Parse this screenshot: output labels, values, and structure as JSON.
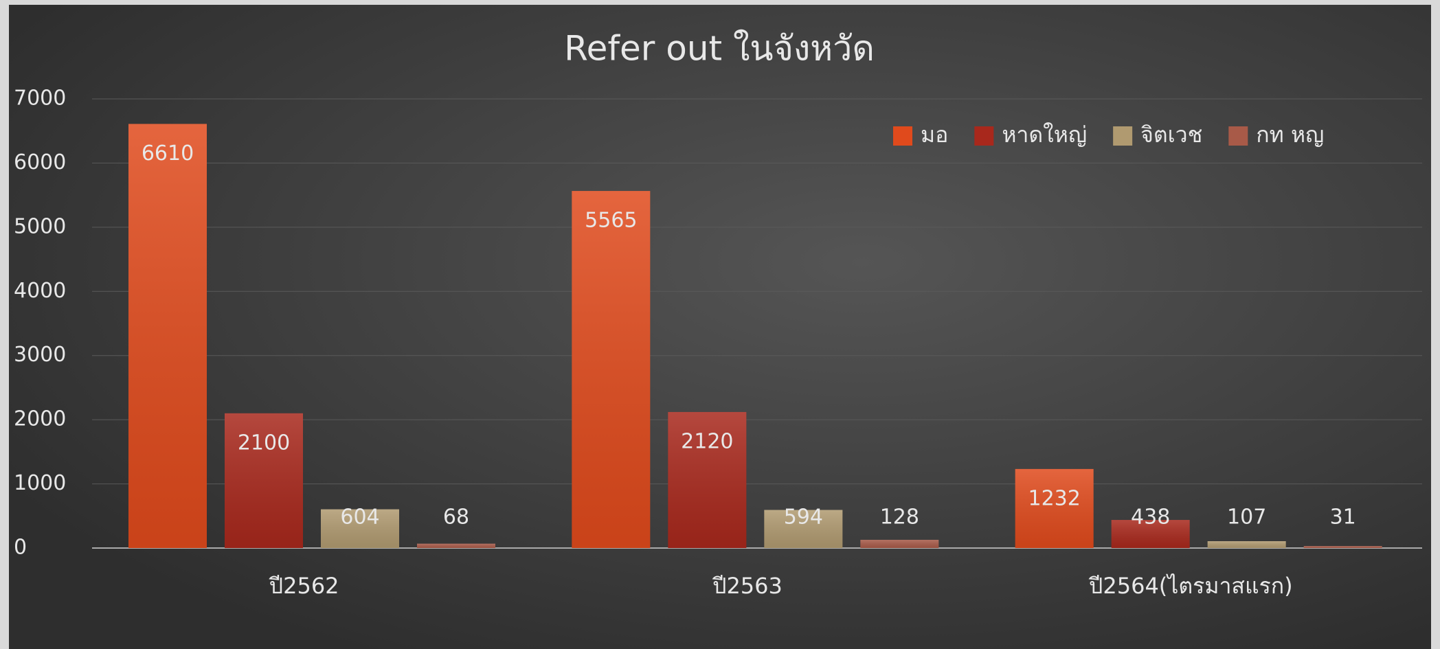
{
  "chart_data": {
    "type": "bar",
    "title": "Refer out ในจังหวัด",
    "categories": [
      "ปี2562",
      "ปี2563",
      "ปี2564(ไตรมาสแรก)"
    ],
    "series": [
      {
        "name": "มอ",
        "color": "#e04a1c",
        "values": [
          6610,
          5565,
          1232
        ]
      },
      {
        "name": "หาดใหญ่",
        "color": "#a8281c",
        "values": [
          2100,
          2120,
          438
        ]
      },
      {
        "name": "จิตเวช",
        "color": "#b09a70",
        "values": [
          604,
          594,
          107
        ]
      },
      {
        "name": "กท หญ",
        "color": "#a85a48",
        "values": [
          68,
          128,
          31
        ]
      }
    ],
    "ylim": [
      0,
      7000
    ],
    "yticks": [
      0,
      1000,
      2000,
      3000,
      4000,
      5000,
      6000,
      7000
    ],
    "grid": true,
    "legend": "top-right"
  }
}
